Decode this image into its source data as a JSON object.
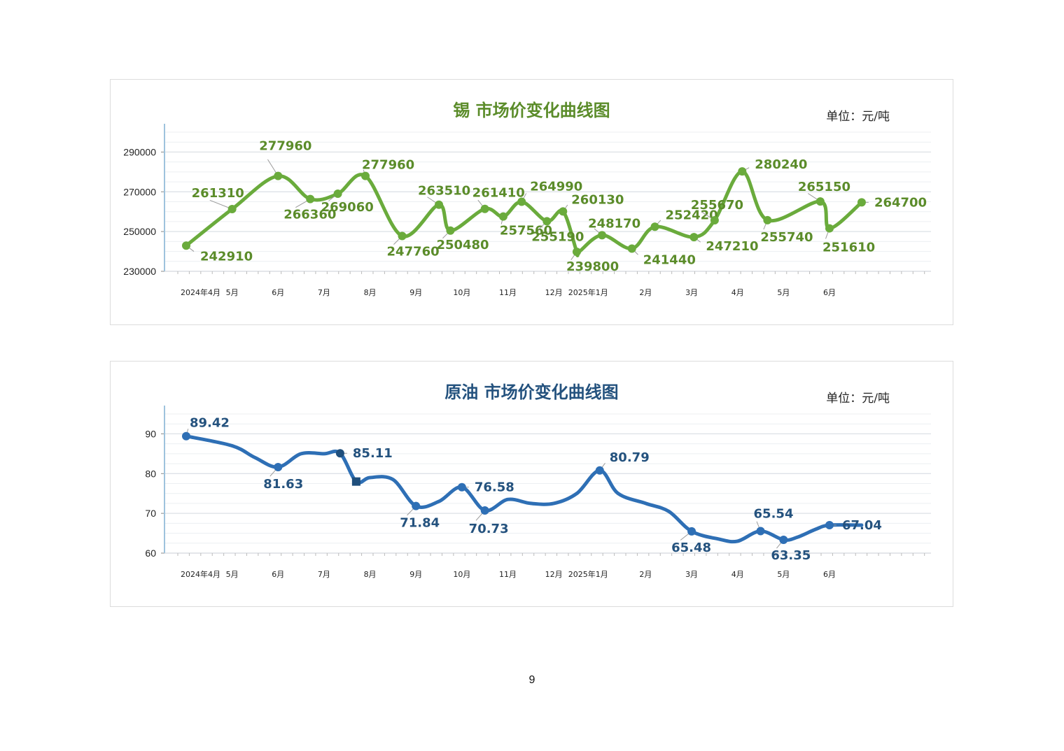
{
  "page_number": "9",
  "chart_data": [
    {
      "type": "line",
      "title": "锡  市场价变化曲线图",
      "unit": "单位：元/吨",
      "color": "#6aab3c",
      "label_color": "#5b8c2a",
      "ylim": [
        230000,
        300000
      ],
      "y_ticks": [
        "230000",
        "250000",
        "270000",
        "290000"
      ],
      "x_ticks": [
        "2024年4月",
        "5月",
        "6月",
        "7月",
        "8月",
        "9月",
        "10月",
        "11月",
        "12月",
        "2025年1月",
        "2月",
        "3月",
        "4月",
        "5月",
        "6月"
      ],
      "grid": true,
      "legend": "none",
      "series": [
        {
          "x": [
            0,
            1.0,
            2.0,
            2.7,
            3.3,
            3.9,
            4.7,
            5.5,
            5.75,
            6.5,
            6.9,
            7.3,
            7.85,
            8.2,
            8.5,
            8.55,
            9.05,
            9.7,
            10.2,
            11.05,
            11.5,
            12.1,
            12.65,
            13.8,
            14.0,
            14.7
          ],
          "values": [
            242910,
            261310,
            277960,
            266360,
            269060,
            277960,
            247760,
            263510,
            250480,
            261410,
            257560,
            264990,
            255190,
            260130,
            239800,
            239800,
            248170,
            241440,
            252420,
            247210,
            255670,
            280240,
            255740,
            265150,
            251610,
            264700
          ],
          "points": [
            {
              "i": 0,
              "label": "242910"
            },
            {
              "i": 1,
              "label": "261310"
            },
            {
              "i": 2,
              "label": "277960"
            },
            {
              "i": 3,
              "label": "266360"
            },
            {
              "i": 4,
              "label": "269060"
            },
            {
              "i": 5,
              "label": "277960"
            },
            {
              "i": 6,
              "label": "247760"
            },
            {
              "i": 7,
              "label": "263510"
            },
            {
              "i": 8,
              "label": "250480"
            },
            {
              "i": 9,
              "label": "261410"
            },
            {
              "i": 10,
              "label": "257560"
            },
            {
              "i": 11,
              "label": "264990"
            },
            {
              "i": 12,
              "label": "255190"
            },
            {
              "i": 13,
              "label": "260130"
            },
            {
              "i": 14,
              "label": "239800"
            },
            {
              "i": 16,
              "label": "248170"
            },
            {
              "i": 17,
              "label": "241440"
            },
            {
              "i": 18,
              "label": "252420"
            },
            {
              "i": 19,
              "label": "247210"
            },
            {
              "i": 20,
              "label": "255670"
            },
            {
              "i": 21,
              "label": "280240"
            },
            {
              "i": 22,
              "label": "255740"
            },
            {
              "i": 23,
              "label": "265150"
            },
            {
              "i": 24,
              "label": "251610"
            },
            {
              "i": 25,
              "label": "264700"
            }
          ]
        }
      ]
    },
    {
      "type": "line",
      "title": "原油  市场价变化曲线图",
      "unit": "单位：元/吨",
      "color": "#2e6fb5",
      "label_color": "#24527e",
      "ylim": [
        60,
        95
      ],
      "y_ticks": [
        "60",
        "70",
        "80",
        "90"
      ],
      "x_ticks": [
        "2024年4月",
        "5月",
        "6月",
        "7月",
        "8月",
        "9月",
        "10月",
        "11月",
        "12月",
        "2025年1月",
        "2月",
        "3月",
        "4月",
        "5月",
        "6月"
      ],
      "grid": true,
      "legend": "none",
      "series": [
        {
          "x": [
            0,
            1.0,
            1.5,
            2.0,
            2.5,
            3.0,
            3.35,
            3.7,
            4.0,
            4.5,
            5.0,
            5.5,
            6.0,
            6.5,
            7.0,
            7.5,
            8.0,
            8.5,
            9.0,
            9.4,
            10.0,
            10.5,
            11.0,
            11.6,
            12.0,
            12.5,
            13.0,
            13.3,
            13.7,
            14.0,
            14.7
          ],
          "values": [
            89.42,
            87.0,
            84.0,
            81.63,
            85.0,
            85.0,
            85.11,
            78.0,
            79.0,
            78.5,
            71.84,
            73.0,
            76.58,
            70.73,
            73.5,
            72.5,
            72.5,
            75.0,
            80.79,
            75.0,
            72.5,
            70.5,
            65.48,
            63.5,
            63.0,
            65.54,
            63.35,
            64.0,
            66.0,
            67.04,
            67.04
          ],
          "points": [
            {
              "i": 0,
              "label": "89.42"
            },
            {
              "i": 3,
              "label": "81.63"
            },
            {
              "i": 6,
              "label": "85.11"
            },
            {
              "i": 10,
              "label": "71.84"
            },
            {
              "i": 12,
              "label": "76.58"
            },
            {
              "i": 13,
              "label": "70.73"
            },
            {
              "i": 18,
              "label": "80.79"
            },
            {
              "i": 22,
              "label": "65.48"
            },
            {
              "i": 25,
              "label": "65.54"
            },
            {
              "i": 26,
              "label": "63.35"
            },
            {
              "i": 29,
              "label": "67.04"
            }
          ]
        }
      ]
    }
  ]
}
